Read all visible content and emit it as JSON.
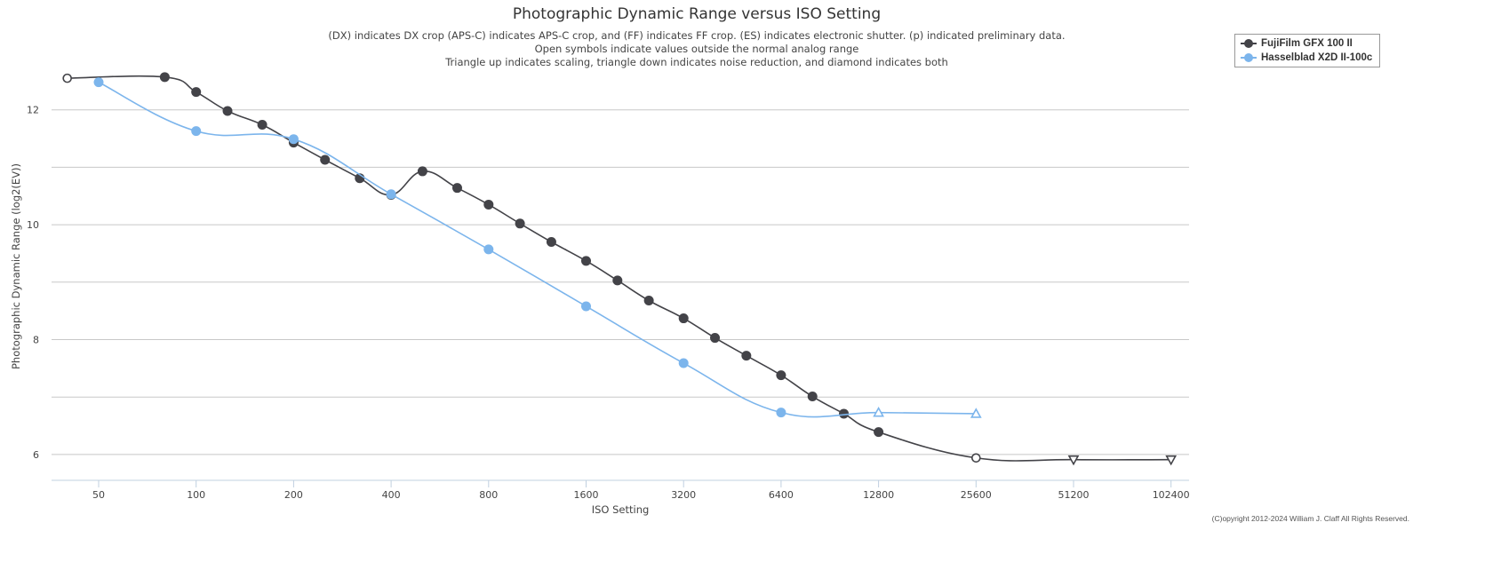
{
  "chart_data": {
    "type": "line",
    "title": "Photographic Dynamic Range versus ISO Setting",
    "subtitle": [
      "(DX) indicates DX crop (APS-C) indicates APS-C crop, and (FF) indicates FF crop. (ES) indicates electronic shutter. (p) indicated preliminary data.",
      "Open symbols indicate values outside the normal analog range",
      "Triangle up indicates scaling, triangle down indicates noise reduction, and diamond indicates both"
    ],
    "xlabel": "ISO Setting",
    "ylabel": "Photographic Dynamic Range (log2(EV))",
    "xscale": "log2",
    "xticks": [
      50,
      100,
      200,
      400,
      800,
      1600,
      3200,
      6400,
      12800,
      25600,
      51200,
      102400
    ],
    "yticks": [
      6,
      8,
      10,
      12
    ],
    "ygrid": [
      6,
      7,
      8,
      9,
      10,
      11,
      12
    ],
    "ylim": [
      5.55,
      13.0
    ],
    "xlim": [
      35.8,
      102400
    ],
    "grid": true,
    "legend_position": "top-right",
    "series": [
      {
        "name": "FujiFilm GFX 100 II",
        "color": "#434348",
        "points": [
          {
            "iso": 40,
            "dr": 12.55,
            "marker": "open-circle"
          },
          {
            "iso": 80,
            "dr": 12.57,
            "marker": "circle"
          },
          {
            "iso": 100,
            "dr": 12.31,
            "marker": "circle"
          },
          {
            "iso": 125,
            "dr": 11.98,
            "marker": "circle"
          },
          {
            "iso": 160,
            "dr": 11.74,
            "marker": "circle"
          },
          {
            "iso": 200,
            "dr": 11.43,
            "marker": "circle"
          },
          {
            "iso": 250,
            "dr": 11.13,
            "marker": "circle"
          },
          {
            "iso": 320,
            "dr": 10.81,
            "marker": "circle"
          },
          {
            "iso": 400,
            "dr": 10.52,
            "marker": "circle"
          },
          {
            "iso": 500,
            "dr": 10.93,
            "marker": "circle"
          },
          {
            "iso": 640,
            "dr": 10.64,
            "marker": "circle"
          },
          {
            "iso": 800,
            "dr": 10.35,
            "marker": "circle"
          },
          {
            "iso": 1000,
            "dr": 10.02,
            "marker": "circle"
          },
          {
            "iso": 1250,
            "dr": 9.7,
            "marker": "circle"
          },
          {
            "iso": 1600,
            "dr": 9.37,
            "marker": "circle"
          },
          {
            "iso": 2000,
            "dr": 9.03,
            "marker": "circle"
          },
          {
            "iso": 2500,
            "dr": 8.68,
            "marker": "circle"
          },
          {
            "iso": 3200,
            "dr": 8.37,
            "marker": "circle"
          },
          {
            "iso": 4000,
            "dr": 8.03,
            "marker": "circle"
          },
          {
            "iso": 5000,
            "dr": 7.72,
            "marker": "circle"
          },
          {
            "iso": 6400,
            "dr": 7.38,
            "marker": "circle"
          },
          {
            "iso": 8000,
            "dr": 7.01,
            "marker": "circle"
          },
          {
            "iso": 10000,
            "dr": 6.71,
            "marker": "circle"
          },
          {
            "iso": 12800,
            "dr": 6.39,
            "marker": "circle"
          },
          {
            "iso": 25600,
            "dr": 5.94,
            "marker": "open-circle"
          },
          {
            "iso": 51200,
            "dr": 5.91,
            "marker": "triangle-down"
          },
          {
            "iso": 102400,
            "dr": 5.91,
            "marker": "triangle-down"
          }
        ]
      },
      {
        "name": "Hasselblad X2D II-100c",
        "color": "#7cb5ec",
        "points": [
          {
            "iso": 50,
            "dr": 12.48,
            "marker": "circle"
          },
          {
            "iso": 100,
            "dr": 11.63,
            "marker": "circle"
          },
          {
            "iso": 200,
            "dr": 11.49,
            "marker": "circle"
          },
          {
            "iso": 400,
            "dr": 10.53,
            "marker": "circle"
          },
          {
            "iso": 800,
            "dr": 9.57,
            "marker": "circle"
          },
          {
            "iso": 1600,
            "dr": 8.58,
            "marker": "circle"
          },
          {
            "iso": 3200,
            "dr": 7.59,
            "marker": "circle"
          },
          {
            "iso": 6400,
            "dr": 6.73,
            "marker": "circle"
          },
          {
            "iso": 12800,
            "dr": 6.73,
            "marker": "triangle-up"
          },
          {
            "iso": 25600,
            "dr": 6.71,
            "marker": "triangle-up"
          }
        ]
      }
    ]
  },
  "copyright": "(C)opyright 2012-2024 William J. Claff All Rights Reserved."
}
